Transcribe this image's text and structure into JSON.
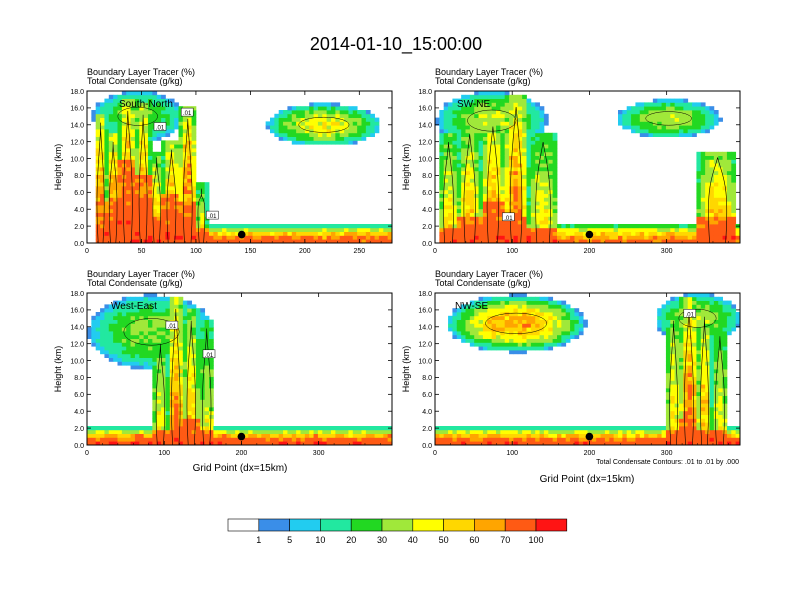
{
  "figure": {
    "title": "2014-01-10_15:00:00",
    "xaxis_title": "Grid Point (dx=15km)",
    "contour_note": "Total Condensate Contours: .01 to .01 by .000"
  },
  "colorbar": {
    "colors": [
      "#ffffff",
      "#3a8ee8",
      "#22ccf0",
      "#22e8a0",
      "#22d822",
      "#a0e83a",
      "#ffff00",
      "#ffd700",
      "#ffa500",
      "#ff5a14",
      "#ff1414"
    ],
    "labels": [
      "1",
      "5",
      "10",
      "20",
      "30",
      "40",
      "50",
      "60",
      "70",
      "100"
    ]
  },
  "chart_data": [
    {
      "type": "heatmap",
      "panel": "South-North",
      "title_lines": [
        "Boundary Layer Tracer    (%)",
        "Total Condensate    (g/kg)"
      ],
      "ylabel": "Height (km)",
      "xlim": [
        0,
        280
      ],
      "ylim": [
        0,
        18
      ],
      "xticks": [
        0,
        50,
        100,
        150,
        200,
        250
      ],
      "yticks": [
        "0.0",
        "2.0",
        "4.0",
        "6.0",
        "8.0",
        "10.0",
        "12.0",
        "14.0",
        "16.0",
        "18.0"
      ],
      "contour_labels": [
        {
          "x": 67,
          "y": 13.8,
          "text": ".01"
        },
        {
          "x": 92,
          "y": 15.5,
          "text": ".01"
        },
        {
          "x": 115,
          "y": 3.3,
          "text": ".01"
        }
      ],
      "marker": {
        "x": 142,
        "y": 1.0
      },
      "plumes": [
        {
          "x": [
            7,
            18
          ],
          "top": 15.5,
          "peak": 85,
          "hot_top": 4
        },
        {
          "x": [
            18,
            30
          ],
          "top": 13,
          "peak": 90,
          "hot_top": 5
        },
        {
          "x": [
            30,
            45
          ],
          "top": 17,
          "peak": 90,
          "hot_top": 10
        },
        {
          "x": [
            45,
            58
          ],
          "top": 16.5,
          "peak": 80,
          "hot_top": 8
        },
        {
          "x": [
            58,
            70
          ],
          "top": 11,
          "peak": 65,
          "hot_top": 3
        },
        {
          "x": [
            70,
            85
          ],
          "top": 12,
          "peak": 85,
          "hot_top": 6
        },
        {
          "x": [
            85,
            100
          ],
          "top": 16,
          "peak": 90,
          "hot_top": 5
        },
        {
          "x": [
            100,
            110
          ],
          "top": 7,
          "peak": 55,
          "hot_top": 2
        }
      ],
      "anvils": [
        {
          "x": [
            5,
            88
          ],
          "y": [
            12,
            18
          ],
          "peak": 30
        },
        {
          "x": [
            165,
            270
          ],
          "y": [
            11.5,
            16.5
          ],
          "peak": 45
        }
      ],
      "boundary_layer": {
        "x": [
          100,
          280
        ],
        "top": 2.2,
        "peak": 80
      }
    },
    {
      "type": "heatmap",
      "panel": "SW-NE",
      "title_lines": [
        "Boundary Layer Tracer    (%)",
        "Total Condensate    (g/kg)"
      ],
      "ylabel": "Height (km)",
      "xlim": [
        0,
        395
      ],
      "ylim": [
        0,
        18
      ],
      "xticks": [
        0,
        100,
        200,
        300
      ],
      "yticks": [
        "0.0",
        "2.0",
        "4.0",
        "6.0",
        "8.0",
        "10.0",
        "12.0",
        "14.0",
        "16.0",
        "18.0"
      ],
      "contour_labels": [
        {
          "x": 95,
          "y": 3.1,
          "text": ".01"
        }
      ],
      "marker": {
        "x": 200,
        "y": 1.0
      },
      "plumes": [
        {
          "x": [
            5,
            30
          ],
          "top": 13,
          "peak": 60,
          "hot_top": 2
        },
        {
          "x": [
            30,
            60
          ],
          "top": 14,
          "peak": 65,
          "hot_top": 3
        },
        {
          "x": [
            60,
            90
          ],
          "top": 15,
          "peak": 75,
          "hot_top": 5
        },
        {
          "x": [
            90,
            120
          ],
          "top": 17.5,
          "peak": 85,
          "hot_top": 3
        },
        {
          "x": [
            120,
            160
          ],
          "top": 13,
          "peak": 55,
          "hot_top": 2
        },
        {
          "x": [
            340,
            392
          ],
          "top": 11,
          "peak": 70,
          "hot_top": 3
        }
      ],
      "anvils": [
        {
          "x": [
            2,
            145
          ],
          "y": [
            11,
            18
          ],
          "peak": 35
        },
        {
          "x": [
            235,
            370
          ],
          "y": [
            12.5,
            17
          ],
          "peak": 35
        }
      ],
      "boundary_layer": {
        "x": [
          150,
          395
        ],
        "top": 2.4,
        "peak": 75
      }
    },
    {
      "type": "heatmap",
      "panel": "West-East",
      "title_lines": [
        "Boundary Layer Tracer    (%)",
        "Total Condensate    (g/kg)"
      ],
      "ylabel": "Height (km)",
      "xlim": [
        0,
        395
      ],
      "ylim": [
        0,
        18
      ],
      "xticks": [
        0,
        100,
        200,
        300
      ],
      "yticks": [
        "0.0",
        "2.0",
        "4.0",
        "6.0",
        "8.0",
        "10.0",
        "12.0",
        "14.0",
        "16.0",
        "18.0"
      ],
      "contour_labels": [
        {
          "x": 110,
          "y": 14.2,
          "text": ".01"
        },
        {
          "x": 158,
          "y": 10.8,
          "text": ".01"
        }
      ],
      "marker": {
        "x": 200,
        "y": 1.0
      },
      "plumes": [
        {
          "x": [
            85,
            105
          ],
          "top": 13,
          "peak": 55,
          "hot_top": 2
        },
        {
          "x": [
            105,
            125
          ],
          "top": 17.5,
          "peak": 80,
          "hot_top": 3
        },
        {
          "x": [
            125,
            145
          ],
          "top": 16,
          "peak": 65,
          "hot_top": 3
        },
        {
          "x": [
            145,
            165
          ],
          "top": 15,
          "peak": 50,
          "hot_top": 2
        }
      ],
      "anvils": [
        {
          "x": [
            2,
            165
          ],
          "y": [
            9,
            17.8
          ],
          "peak": 30
        }
      ],
      "boundary_layer": {
        "x": [
          0,
          395
        ],
        "top": 2.2,
        "peak": 90
      }
    },
    {
      "type": "heatmap",
      "panel": "NW-SE",
      "title_lines": [
        "Boundary Layer Tracer    (%)",
        "Total Condensate    (g/kg)"
      ],
      "ylabel": "Height (km)",
      "xlim": [
        0,
        395
      ],
      "ylim": [
        0,
        18
      ],
      "xticks": [
        0,
        100,
        200,
        300
      ],
      "yticks": [
        "0.0",
        "2.0",
        "4.0",
        "6.0",
        "8.0",
        "10.0",
        "12.0",
        "14.0",
        "16.0",
        "18.0"
      ],
      "contour_labels": [
        {
          "x": 330,
          "y": 15.6,
          "text": ".01"
        }
      ],
      "marker": {
        "x": 200,
        "y": 1.0
      },
      "plumes": [
        {
          "x": [
            300,
            318
          ],
          "top": 16,
          "peak": 60,
          "hot_top": 2
        },
        {
          "x": [
            318,
            340
          ],
          "top": 17.5,
          "peak": 85,
          "hot_top": 3
        },
        {
          "x": [
            340,
            358
          ],
          "top": 16.5,
          "peak": 70,
          "hot_top": 2
        },
        {
          "x": [
            358,
            380
          ],
          "top": 14,
          "peak": 50,
          "hot_top": 2
        }
      ],
      "anvils": [
        {
          "x": [
            15,
            195
          ],
          "y": [
            11,
            17.8
          ],
          "peak": 60
        },
        {
          "x": [
            285,
            395
          ],
          "y": [
            12,
            18
          ],
          "peak": 35
        }
      ],
      "boundary_layer": {
        "x": [
          0,
          395
        ],
        "top": 2.2,
        "peak": 85
      }
    }
  ]
}
